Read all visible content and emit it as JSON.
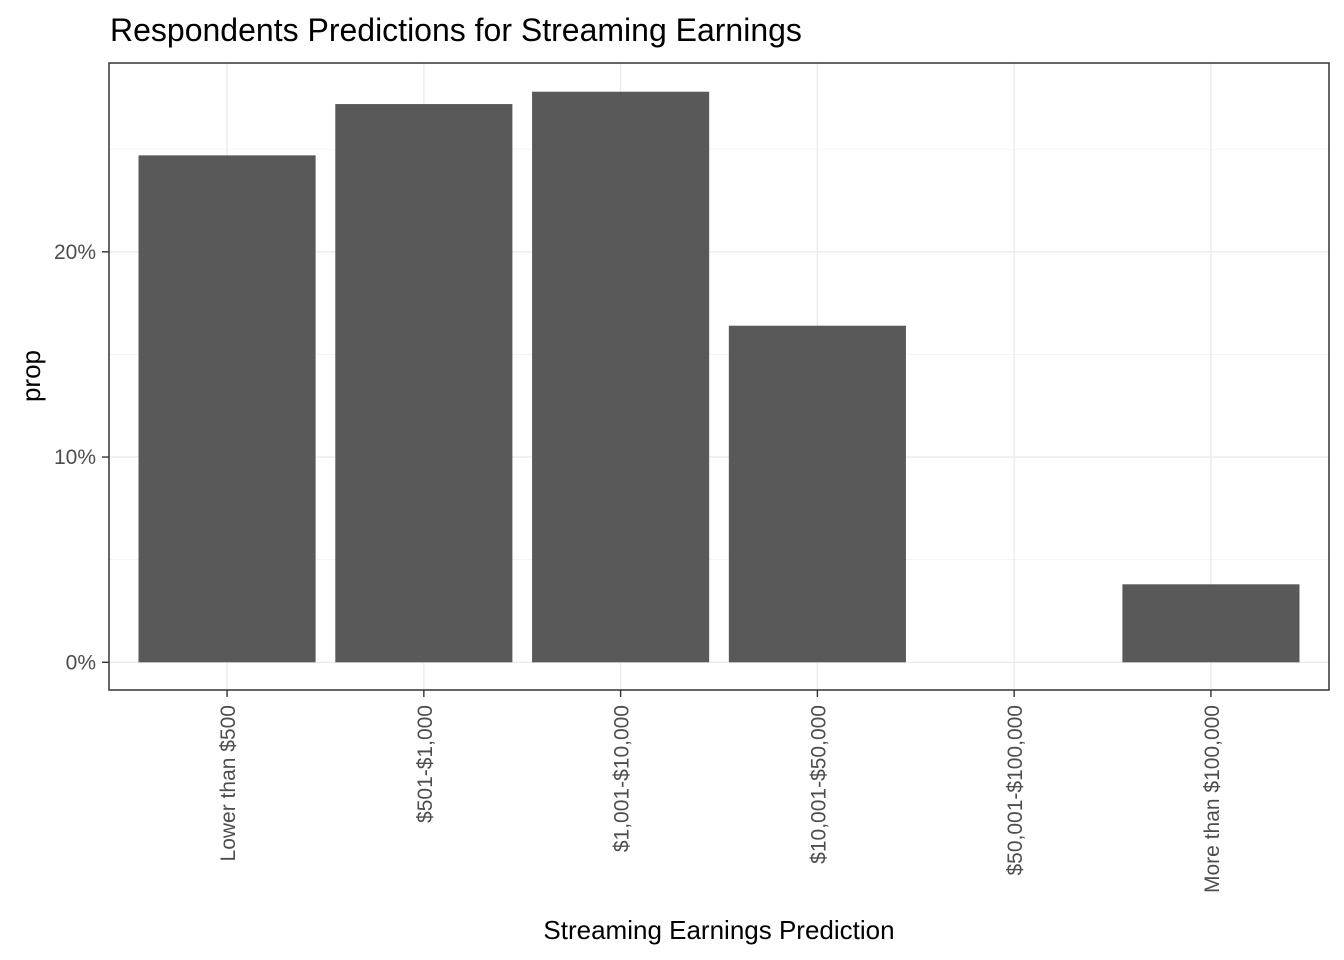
{
  "chart_data": {
    "type": "bar",
    "title": "Respondents Predictions for Streaming Earnings",
    "xlabel": "Streaming Earnings Prediction",
    "ylabel": "prop",
    "categories": [
      "Lower than $500",
      "$501-$1,000",
      "$1,001-$10,000",
      "$10,001-$50,000",
      "$50,001-$100,000",
      "More than $100,000"
    ],
    "values": [
      0.247,
      0.272,
      0.278,
      0.164,
      0.0,
      0.038
    ],
    "ylim": [
      -0.0135,
      0.292
    ],
    "y_ticks": [
      0,
      0.1,
      0.2
    ],
    "y_tick_labels": [
      "0%",
      "10%",
      "20%"
    ],
    "y_minor_ticks": [
      0.05,
      0.15,
      0.25
    ],
    "grid": true,
    "legend": "none",
    "colors": {
      "bar": "#595959",
      "grid": "#ebebeb",
      "border": "#333333"
    }
  }
}
